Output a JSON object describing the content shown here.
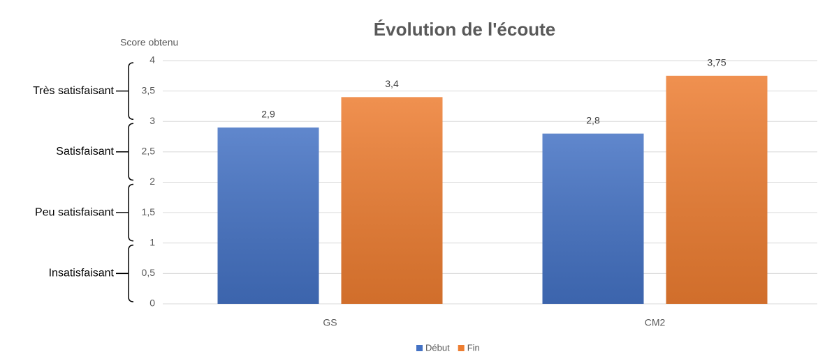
{
  "chart_data": {
    "type": "bar",
    "title": "Évolution de l'écoute",
    "y_label": "Score obtenu",
    "categories": [
      "GS",
      "CM2"
    ],
    "series": [
      {
        "name": "Début",
        "color": "#4472c4",
        "values": [
          2.9,
          2.8
        ],
        "value_labels": [
          "2,9",
          "2,8"
        ]
      },
      {
        "name": "Fin",
        "color": "#ed7d31",
        "values": [
          3.4,
          3.75
        ],
        "value_labels": [
          "3,4",
          "3,75"
        ]
      }
    ],
    "ylim": [
      0,
      4
    ],
    "yticks": [
      0,
      {
        "value": 0.5,
        "label": "0,5"
      },
      1,
      {
        "value": 1.5,
        "label": "1,5"
      },
      2,
      {
        "value": 2.5,
        "label": "2,5"
      },
      3,
      {
        "value": 3.5,
        "label": "3,5"
      },
      4
    ],
    "grid": true,
    "legend": "bottom",
    "bands": [
      {
        "label": "Très satisfaisant",
        "range": [
          3,
          4
        ]
      },
      {
        "label": "Satisfaisant",
        "range": [
          2,
          3
        ]
      },
      {
        "label": "Peu satisfaisant",
        "range": [
          1,
          2
        ]
      },
      {
        "label": "Insatisfaisant",
        "range": [
          0,
          1
        ]
      }
    ]
  }
}
